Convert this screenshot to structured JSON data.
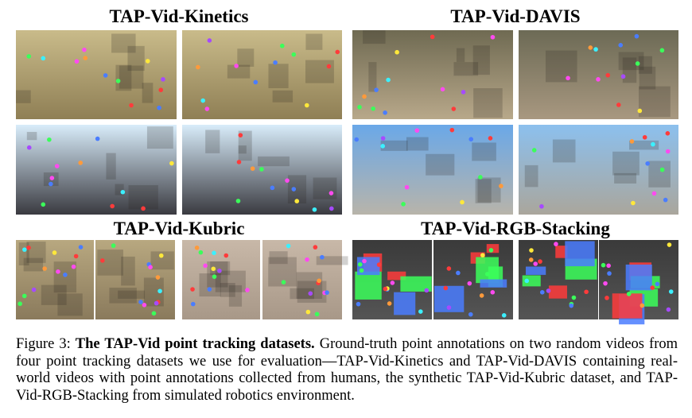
{
  "figure": {
    "panels": [
      {
        "title": "TAP-Vid-Kinetics"
      },
      {
        "title": "TAP-Vid-DAVIS"
      },
      {
        "title": "TAP-Vid-Kubric"
      },
      {
        "title": "TAP-Vid-RGB-Stacking"
      }
    ],
    "caption": {
      "label": "Figure 3:",
      "title": "The TAP-Vid point tracking datasets.",
      "text": "Ground-truth point annotations on two random videos from four point tracking datasets we use for evaluation—TAP-Vid-Kinetics and TAP-Vid-DAVIS containing real-world videos with point annotations collected from humans, the synthetic TAP-Vid-Kubric dataset, and TAP-Vid-RGB-Stacking from simulated robotics environment."
    }
  }
}
